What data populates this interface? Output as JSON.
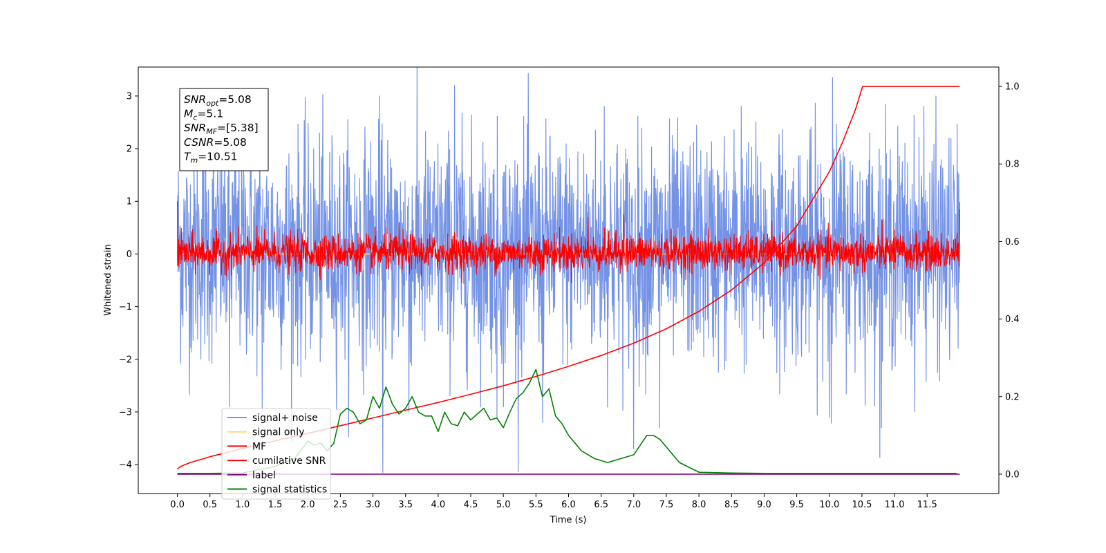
{
  "chart_data": {
    "type": "line",
    "xlabel": "Time (s)",
    "ylabel": "Whitened strain",
    "xlim": [
      -0.6,
      12.6
    ],
    "ylim": [
      -4.55,
      3.55
    ],
    "y2lim": [
      -0.05,
      1.05
    ],
    "x_ticks": [
      "0.0",
      "0.5",
      "1.0",
      "1.5",
      "2.0",
      "2.5",
      "3.0",
      "3.5",
      "4.0",
      "4.5",
      "5.0",
      "5.5",
      "6.0",
      "6.5",
      "7.0",
      "7.5",
      "8.0",
      "8.5",
      "9.0",
      "9.5",
      "10.0",
      "10.5",
      "11.0",
      "11.5"
    ],
    "y_ticks": [
      "3",
      "2",
      "1",
      "0",
      "−1",
      "−2",
      "−3",
      "−4"
    ],
    "y2_ticks": [
      "1.0",
      "0.8",
      "0.6",
      "0.4",
      "0.2",
      "0.0"
    ],
    "info_box": [
      {
        "main": "SNR",
        "sub": "opt",
        "value": "=5.08"
      },
      {
        "main": "M",
        "sub": "c",
        "value": "=5.1"
      },
      {
        "main": "SNR",
        "sub": "MF",
        "value": "=[5.38]"
      },
      {
        "main": "CSNR",
        "sub": "",
        "value": "=5.08"
      },
      {
        "main": "T",
        "sub": "m",
        "value": "=10.51"
      }
    ],
    "legend_position": "lower-left",
    "series": [
      {
        "name": "signal+ noise",
        "color": "#7593e6",
        "axis": "left",
        "kind": "noise",
        "x_range": [
          0.0,
          12.0
        ],
        "band": [
          -1.6,
          1.8
        ],
        "spikes": [
          [
            0.8,
            -2.9
          ],
          [
            1.3,
            -3.0
          ],
          [
            3.15,
            -4.15
          ],
          [
            3.1,
            3.0
          ],
          [
            3.55,
            -3.0
          ],
          [
            4.25,
            3.2
          ],
          [
            4.9,
            -3.1
          ],
          [
            5.0,
            -2.9
          ],
          [
            5.6,
            -3.2
          ],
          [
            7.0,
            -3.7
          ],
          [
            7.4,
            -3.3
          ],
          [
            10.05,
            3.35
          ],
          [
            10.0,
            -3.1
          ],
          [
            10.8,
            -3.3
          ],
          [
            11.45,
            2.8
          ],
          [
            6.55,
            2.8
          ],
          [
            8.65,
            2.8
          ]
        ]
      },
      {
        "name": "signal only",
        "color": "#ffd580",
        "axis": "left",
        "kind": "flat",
        "x": [
          0.0,
          12.0
        ],
        "y": [
          0.0,
          0.0
        ]
      },
      {
        "name": "MF",
        "color": "#ff0000",
        "axis": "left",
        "kind": "noise",
        "x_range": [
          0.0,
          12.0
        ],
        "band": [
          -0.25,
          0.3
        ],
        "spikes": [
          [
            0.0,
            1.0
          ],
          [
            3.4,
            0.6
          ],
          [
            6.3,
            0.7
          ],
          [
            6.85,
            0.75
          ],
          [
            11.0,
            0.45
          ],
          [
            12.0,
            0.85
          ]
        ]
      },
      {
        "name": "cumilative SNR",
        "color": "#ff0000",
        "axis": "right",
        "x": [
          0.0,
          0.05,
          0.2,
          0.5,
          1.0,
          1.5,
          2.0,
          2.5,
          3.0,
          3.5,
          4.0,
          4.5,
          5.0,
          5.5,
          6.0,
          6.5,
          7.0,
          7.5,
          8.0,
          8.5,
          9.0,
          9.5,
          10.0,
          10.2,
          10.4,
          10.51,
          10.6,
          12.0
        ],
        "y": [
          0.013,
          0.02,
          0.03,
          0.045,
          0.066,
          0.086,
          0.105,
          0.125,
          0.145,
          0.165,
          0.185,
          0.206,
          0.228,
          0.252,
          0.278,
          0.306,
          0.338,
          0.375,
          0.42,
          0.475,
          0.545,
          0.64,
          0.78,
          0.855,
          0.94,
          1.0,
          1.0,
          1.0
        ]
      },
      {
        "name": "label",
        "color": "#800080",
        "axis": "right",
        "x": [
          0.0,
          12.0
        ],
        "y": [
          0.0,
          0.0
        ]
      },
      {
        "name": "signal statistics",
        "color": "#008000",
        "axis": "right",
        "x": [
          0.0,
          0.5,
          1.0,
          1.5,
          1.8,
          2.0,
          2.1,
          2.2,
          2.3,
          2.4,
          2.5,
          2.6,
          2.7,
          2.8,
          2.9,
          3.0,
          3.1,
          3.2,
          3.3,
          3.4,
          3.5,
          3.6,
          3.7,
          3.8,
          3.9,
          4.0,
          4.1,
          4.2,
          4.3,
          4.4,
          4.5,
          4.6,
          4.7,
          4.8,
          4.9,
          5.0,
          5.1,
          5.2,
          5.3,
          5.4,
          5.5,
          5.6,
          5.7,
          5.8,
          5.9,
          6.0,
          6.2,
          6.4,
          6.6,
          6.8,
          7.0,
          7.1,
          7.2,
          7.3,
          7.4,
          7.5,
          7.7,
          8.0,
          8.5,
          9.0,
          10.0,
          11.0,
          11.95
        ],
        "y": [
          0.002,
          0.002,
          0.003,
          0.02,
          0.04,
          0.085,
          0.075,
          0.08,
          0.06,
          0.08,
          0.155,
          0.17,
          0.16,
          0.13,
          0.14,
          0.2,
          0.17,
          0.225,
          0.18,
          0.155,
          0.17,
          0.2,
          0.16,
          0.15,
          0.15,
          0.11,
          0.16,
          0.13,
          0.125,
          0.16,
          0.14,
          0.155,
          0.17,
          0.14,
          0.145,
          0.12,
          0.16,
          0.195,
          0.21,
          0.235,
          0.27,
          0.2,
          0.22,
          0.15,
          0.13,
          0.1,
          0.06,
          0.04,
          0.03,
          0.04,
          0.05,
          0.075,
          0.1,
          0.1,
          0.09,
          0.07,
          0.03,
          0.005,
          0.003,
          0.002,
          0.002,
          0.002,
          0.002
        ]
      }
    ]
  }
}
